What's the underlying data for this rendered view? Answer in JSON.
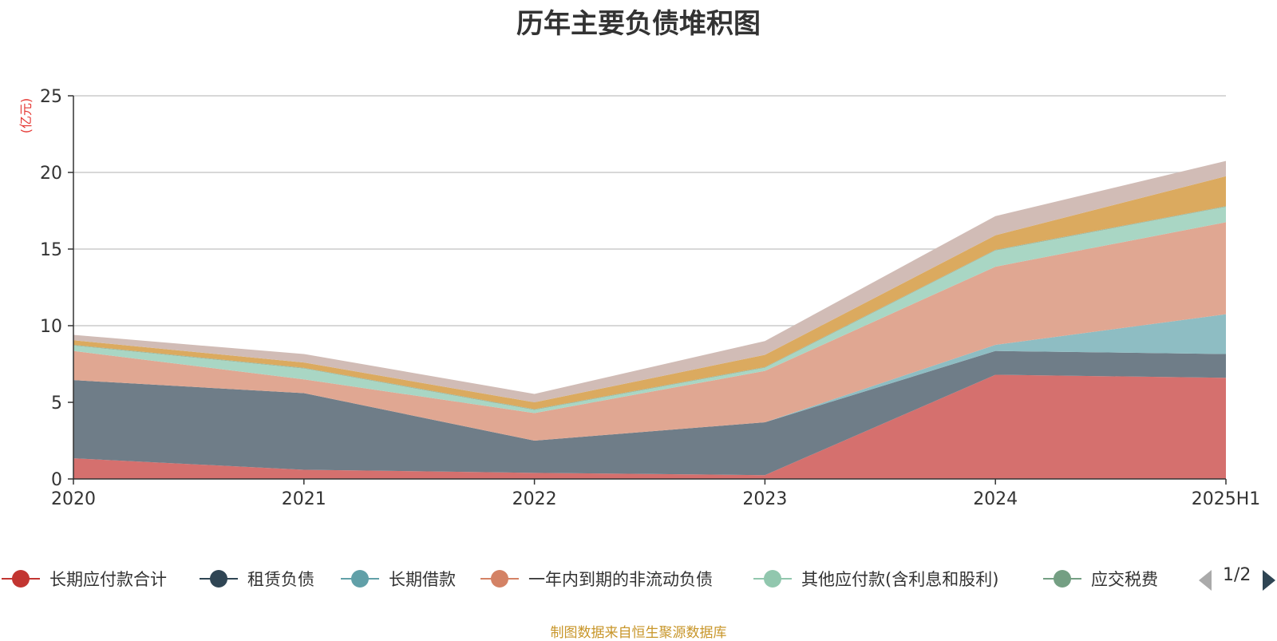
{
  "source_note": "制图数据来自恒生聚源数据库",
  "legend": {
    "page": "1/2"
  },
  "chart_data": {
    "type": "area",
    "title": "历年主要负债堆积图",
    "ylabel": "(亿元)",
    "xlabel": "",
    "stacked": true,
    "categories": [
      "2020",
      "2021",
      "2022",
      "2023",
      "2024",
      "2025H1"
    ],
    "ylim": [
      0,
      25
    ],
    "yticks": [
      0,
      5,
      10,
      15,
      20,
      25
    ],
    "grid": true,
    "legend_position": "bottom",
    "series": [
      {
        "name": "长期应付款合计",
        "color": "#d5706e",
        "legend_color": "#c23531",
        "values": [
          1.35,
          0.6,
          0.4,
          0.25,
          6.8,
          6.6
        ]
      },
      {
        "name": "租赁负债",
        "color": "#6f7d88",
        "legend_color": "#2f4554",
        "values": [
          5.1,
          5.0,
          2.1,
          3.45,
          1.55,
          1.55
        ]
      },
      {
        "name": "长期借款",
        "color": "#8ebdc3",
        "legend_color": "#61a0a8",
        "values": [
          0,
          0,
          0,
          0,
          0.4,
          2.6
        ]
      },
      {
        "name": "一年内到期的非流动负债",
        "color": "#e0a792",
        "legend_color": "#d48265",
        "values": [
          1.9,
          0.9,
          1.8,
          3.35,
          5.1,
          6.0
        ]
      },
      {
        "name": "其他应付款(含利息和股利)",
        "color": "#a9d6c4",
        "legend_color": "#91c7ae",
        "values": [
          0.35,
          0.7,
          0.2,
          0.2,
          1.05,
          1.0
        ]
      },
      {
        "name": "应交税费",
        "color": "#9ab89f",
        "legend_color": "#749f83",
        "values": [
          0.05,
          0.05,
          0.05,
          0.05,
          0.05,
          0.05
        ]
      },
      {
        "name": "",
        "color": "#dbaa5f",
        "values": [
          0.3,
          0.35,
          0.45,
          0.8,
          0.95,
          1.95
        ]
      },
      {
        "name": "",
        "color": "#d1bcb6",
        "values": [
          0.35,
          0.55,
          0.55,
          0.9,
          1.25,
          1.0
        ]
      }
    ]
  }
}
